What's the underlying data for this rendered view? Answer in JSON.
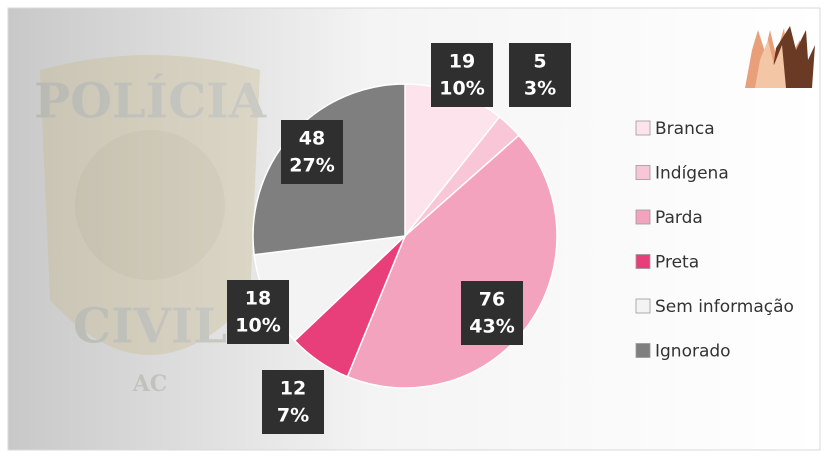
{
  "chart_data": {
    "type": "pie",
    "categories": [
      "Branca",
      "Indígena",
      "Parda",
      "Preta",
      "Sem informação",
      "Ignorado"
    ],
    "values": [
      19,
      5,
      76,
      12,
      18,
      48
    ],
    "percent_values": [
      10,
      3,
      43,
      7,
      10,
      27
    ],
    "percent_labels": [
      "10%",
      "3%",
      "43%",
      "7%",
      "10%",
      "27%"
    ],
    "colors": [
      "#fde3ec",
      "#f9c6d7",
      "#f4a3bf",
      "#e83f7b",
      "#f3f3f3",
      "#7f7f7f"
    ],
    "legend": "right",
    "annotations": [
      "POLÍCIA",
      "CIVIL",
      "AC"
    ]
  }
}
